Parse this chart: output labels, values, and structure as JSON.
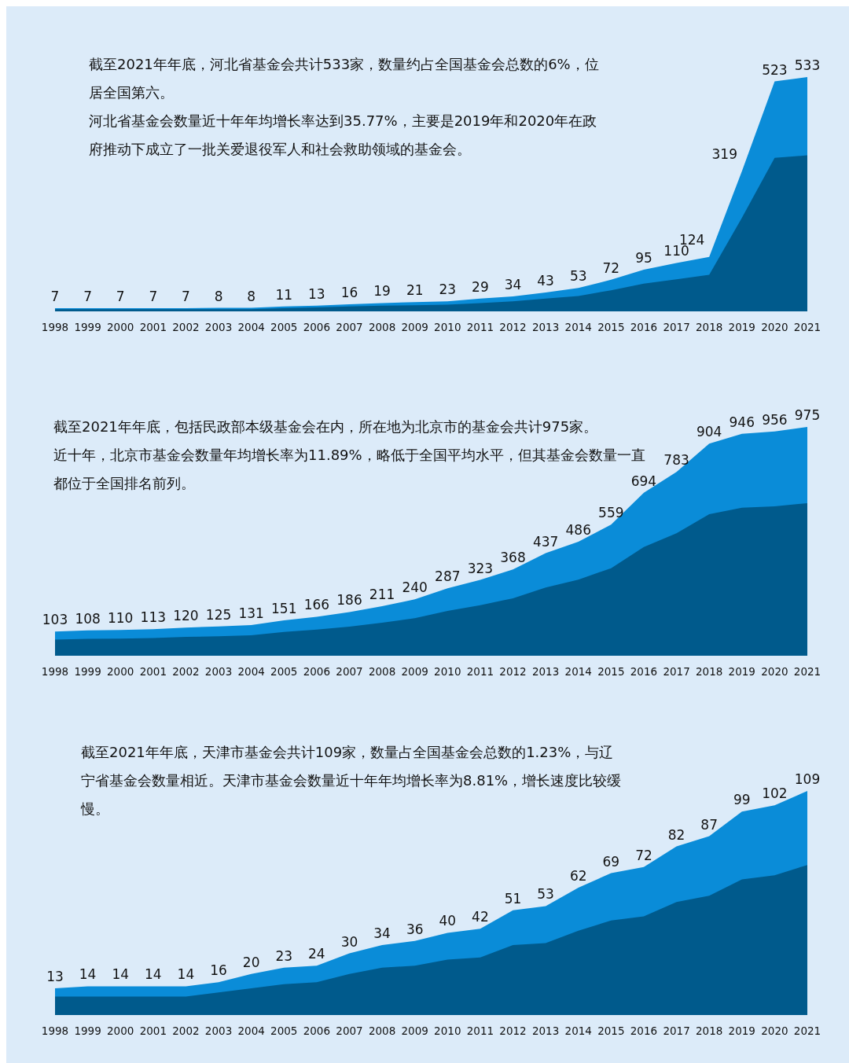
{
  "chart_data": [
    {
      "type": "area",
      "title": "截至2021年年底，河北省基金会共计533家，数量约占全国基金会总数的6%，位居全国第六。",
      "subtitle": "河北省基金会数量近十年年均增长率达到35.77%，主要是2019年和2020年在政府推动下成立了一批关爱退役军人和社会救助领域的基金会。",
      "categories": [
        "1998",
        "1999",
        "2000",
        "2001",
        "2002",
        "2003",
        "2004",
        "2005",
        "2006",
        "2007",
        "2008",
        "2009",
        "2010",
        "2011",
        "2012",
        "2013",
        "2014",
        "2015",
        "2016",
        "2017",
        "2018",
        "2019",
        "2020",
        "2021"
      ],
      "tick_labels": "x",
      "series": [
        {
          "color": "#0a8cd8",
          "values": [
            7,
            7,
            7,
            7,
            7,
            8,
            8,
            11,
            13,
            16,
            19,
            21,
            23,
            29,
            34,
            43,
            53,
            72,
            95,
            110,
            124,
            319,
            523,
            533
          ],
          "value_labels": [
            "7",
            "7",
            "7",
            "7",
            "7",
            "8",
            "8",
            "11",
            "13",
            "16",
            "19",
            "21",
            "23",
            "29",
            "34",
            "43",
            "53",
            "72",
            "95",
            "110",
            "124",
            "319",
            "523",
            "533"
          ]
        },
        {
          "color": "#005a8c",
          "values": [
            5,
            5,
            5,
            5,
            5,
            5,
            5,
            7,
            9,
            11,
            13,
            14,
            15,
            19,
            23,
            29,
            35,
            48,
            63,
            73,
            83,
            213,
            349,
            355
          ]
        }
      ]
    },
    {
      "type": "area",
      "title": "截至2021年年底，包括民政部本级基金会在内，所在地为北京市的基金会共计975家。",
      "subtitle": "近十年，北京市基金会数量年均增长率为11.89%，略低于全国平均水平，但其基金会数量一直都位于全国排名前列。",
      "categories": [
        "1998",
        "1999",
        "2000",
        "2001",
        "2002",
        "2003",
        "2004",
        "2005",
        "2006",
        "2007",
        "2008",
        "2009",
        "2010",
        "2011",
        "2012",
        "2013",
        "2014",
        "2015",
        "2016",
        "2017",
        "2018",
        "2019",
        "2020",
        "2021"
      ],
      "tick_labels": "x",
      "series": [
        {
          "color": "#0a8cd8",
          "values": [
            103,
            108,
            110,
            113,
            120,
            125,
            131,
            151,
            166,
            186,
            211,
            240,
            287,
            323,
            368,
            437,
            486,
            559,
            694,
            783,
            904,
            946,
            956,
            975
          ],
          "value_labels": [
            "103",
            "108",
            "110",
            "113",
            "120",
            "125",
            "131",
            "151",
            "166",
            "186",
            "211",
            "240",
            "287",
            "323",
            "368",
            "437",
            "486",
            "559",
            "694",
            "783",
            "904",
            "946",
            "956",
            "975"
          ]
        },
        {
          "color": "#005a8c",
          "values": [
            69,
            72,
            73,
            75,
            80,
            83,
            87,
            101,
            111,
            124,
            141,
            160,
            191,
            215,
            245,
            291,
            324,
            373,
            463,
            522,
            603,
            631,
            637,
            650
          ]
        }
      ]
    },
    {
      "type": "area",
      "title": "截至2021年年底，天津市基金会共计109家，数量占全国基金会总数的1.23%，与辽宁省基金会数量相近。天津市基金会数量近十年年均增长率为8.81%，增长速度比较缓慢。",
      "categories": [
        "1998",
        "1999",
        "2000",
        "2001",
        "2002",
        "2003",
        "2004",
        "2005",
        "2006",
        "2007",
        "2008",
        "2009",
        "2010",
        "2011",
        "2012",
        "2013",
        "2014",
        "2015",
        "2016",
        "2017",
        "2018",
        "2019",
        "2020",
        "2021"
      ],
      "tick_labels": "x",
      "series": [
        {
          "color": "#0a8cd8",
          "values": [
            13,
            14,
            14,
            14,
            14,
            16,
            20,
            23,
            24,
            30,
            34,
            36,
            40,
            42,
            51,
            53,
            62,
            69,
            72,
            82,
            87,
            99,
            102,
            109
          ],
          "value_labels": [
            "13",
            "14",
            "14",
            "14",
            "14",
            "16",
            "20",
            "23",
            "24",
            "30",
            "34",
            "36",
            "40",
            "42",
            "51",
            "53",
            "62",
            "69",
            "72",
            "82",
            "87",
            "99",
            "102",
            "109"
          ]
        },
        {
          "color": "#005a8c",
          "values": [
            9,
            9,
            9,
            9,
            9,
            11,
            13,
            15,
            16,
            20,
            23,
            24,
            27,
            28,
            34,
            35,
            41,
            46,
            48,
            55,
            58,
            66,
            68,
            73
          ]
        }
      ]
    }
  ]
}
